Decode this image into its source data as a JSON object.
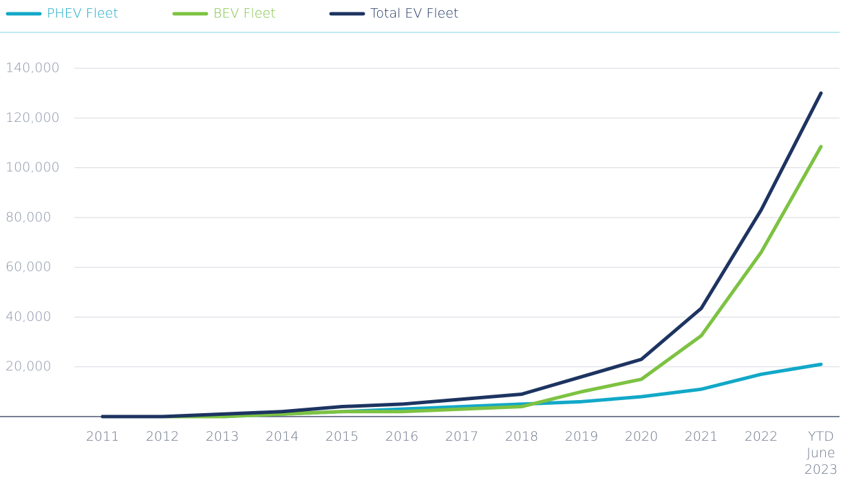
{
  "chart_data": {
    "type": "line",
    "categories": [
      "2011",
      "2012",
      "2013",
      "2014",
      "2015",
      "2016",
      "2017",
      "2018",
      "2019",
      "2020",
      "2021",
      "2022",
      "YTD June 2023"
    ],
    "series": [
      {
        "name": "PHEV Fleet",
        "color": "#12a8c8",
        "values": [
          0,
          0,
          0,
          1000,
          2000,
          3000,
          4000,
          5000,
          6000,
          8000,
          11000,
          17000,
          21000
        ]
      },
      {
        "name": "BEV Fleet",
        "color": "#7dc242",
        "values": [
          0,
          0,
          0,
          1000,
          2000,
          2000,
          3000,
          4000,
          10000,
          15000,
          32500,
          66000,
          108500
        ]
      },
      {
        "name": "Total EV Fleet",
        "color": "#1d3461",
        "values": [
          0,
          0,
          1000,
          2000,
          4000,
          5000,
          7000,
          9000,
          16000,
          23000,
          43500,
          83000,
          130000
        ]
      }
    ],
    "ylim": [
      0,
      150000
    ],
    "yticks": [
      {
        "value": 20000,
        "label": "20,000"
      },
      {
        "value": 40000,
        "label": "40,000"
      },
      {
        "value": 60000,
        "label": "60,000"
      },
      {
        "value": 80000,
        "label": "80,000"
      },
      {
        "value": 100000,
        "label": "100,000"
      },
      {
        "value": 120000,
        "label": "120,000"
      },
      {
        "value": 140000,
        "label": "140,000"
      }
    ],
    "grid": true,
    "legend": "top"
  }
}
